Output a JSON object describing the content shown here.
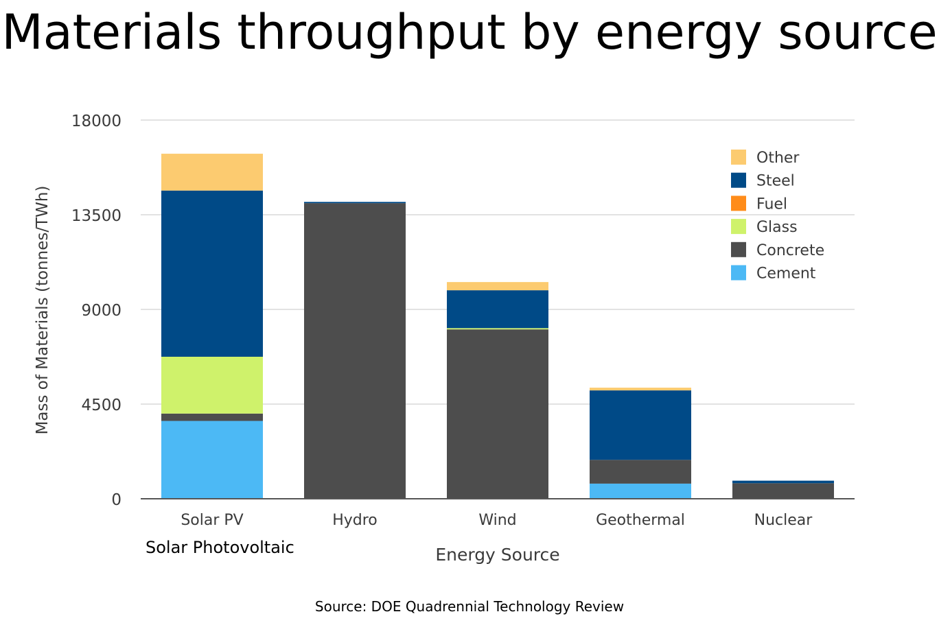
{
  "page": {
    "title": "Materials throughput by energy source",
    "annotation": "Solar Photovoltaic",
    "source": "Source: DOE Quadrennial Technology Review"
  },
  "chart_data": {
    "type": "bar",
    "stacked": true,
    "categories": [
      "Solar PV",
      "Hydro",
      "Wind",
      "Geothermal",
      "Nuclear"
    ],
    "series": [
      {
        "name": "Cement",
        "color": "#4cb9f5",
        "values": [
          3700,
          0,
          0,
          720,
          0
        ]
      },
      {
        "name": "Concrete",
        "color": "#4d4d4d",
        "values": [
          350,
          14050,
          8050,
          1130,
          740
        ]
      },
      {
        "name": "Glass",
        "color": "#cff26b",
        "values": [
          2700,
          0,
          60,
          0,
          0
        ]
      },
      {
        "name": "Fuel",
        "color": "#ff8c1a",
        "values": [
          0,
          0,
          0,
          0,
          0
        ]
      },
      {
        "name": "Steel",
        "color": "#004a87",
        "values": [
          7900,
          60,
          1800,
          3300,
          120
        ]
      },
      {
        "name": "Other",
        "color": "#fccb70",
        "values": [
          1750,
          0,
          390,
          130,
          0
        ]
      }
    ],
    "legend_order": [
      "Other",
      "Steel",
      "Fuel",
      "Glass",
      "Concrete",
      "Cement"
    ],
    "yticks": [
      "0",
      "4500",
      "9000",
      "13500",
      "18000"
    ],
    "ylim": [
      0,
      18000
    ],
    "xlabel": "Energy Source",
    "ylabel": "Mass of Materials (tonnes/TWh)",
    "grid": true,
    "legend_position": "top-right"
  }
}
